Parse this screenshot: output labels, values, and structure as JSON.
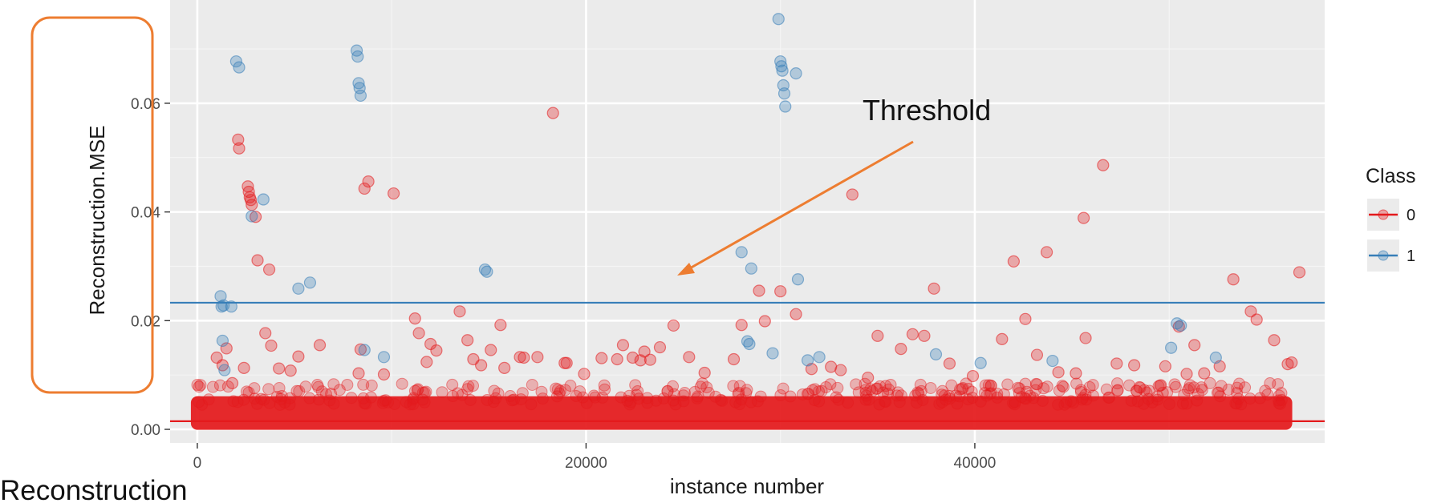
{
  "chart_data": {
    "type": "scatter",
    "title": "",
    "xlabel": "instance number",
    "ylabel": "Reconstruction.MSE",
    "xlim": [
      -1400,
      58000
    ],
    "ylim": [
      -0.0025,
      0.079
    ],
    "x_ticks": [
      0,
      20000,
      40000
    ],
    "x_tick_labels": [
      "0",
      "20000",
      "40000"
    ],
    "x_minor_ticks": [
      10000,
      30000,
      50000
    ],
    "y_ticks": [
      0.0,
      0.02,
      0.04,
      0.06
    ],
    "y_tick_labels": [
      "0.00",
      "0.02",
      "0.04",
      "0.06"
    ],
    "y_minor_ticks": [
      0.01,
      0.03,
      0.05,
      0.07
    ],
    "grid": true,
    "background": "#ebebeb",
    "legend": {
      "title": "Class",
      "placement": "right",
      "entries": [
        {
          "label": "0",
          "color": "#e41a1c"
        },
        {
          "label": "1",
          "color": "#377eb8"
        }
      ]
    },
    "hlines": [
      {
        "y": 0.0233,
        "color": "#377eb8"
      },
      {
        "y": 0.0015,
        "color": "#e41a1c"
      }
    ],
    "annotation": {
      "text": "Threshold",
      "color": "#ed7d31"
    },
    "caption": "Reconstruction",
    "dense_band": {
      "class": "0",
      "x_range": [
        0,
        56000
      ],
      "y_range": [
        0.0005,
        0.0055
      ]
    },
    "series": [
      {
        "name": "0",
        "color": "#e41a1c",
        "points": [
          [
            1000,
            0.0132
          ],
          [
            1300,
            0.0118
          ],
          [
            1500,
            0.0149
          ],
          [
            1800,
            0.0085
          ],
          [
            2100,
            0.0533
          ],
          [
            2150,
            0.0517
          ],
          [
            2400,
            0.0113
          ],
          [
            2600,
            0.0447
          ],
          [
            2650,
            0.0437
          ],
          [
            2700,
            0.0427
          ],
          [
            2750,
            0.0422
          ],
          [
            2800,
            0.0413
          ],
          [
            3000,
            0.0391
          ],
          [
            3100,
            0.0311
          ],
          [
            3500,
            0.0177
          ],
          [
            3700,
            0.0294
          ],
          [
            3800,
            0.0154
          ],
          [
            4200,
            0.0112
          ],
          [
            4800,
            0.0108
          ],
          [
            5200,
            0.0134
          ],
          [
            6300,
            0.0155
          ],
          [
            8300,
            0.0103
          ],
          [
            8400,
            0.0147
          ],
          [
            8600,
            0.0443
          ],
          [
            8800,
            0.0456
          ],
          [
            9600,
            0.0101
          ],
          [
            10100,
            0.0434
          ],
          [
            11200,
            0.0204
          ],
          [
            11400,
            0.0177
          ],
          [
            11800,
            0.0124
          ],
          [
            12000,
            0.0157
          ],
          [
            12300,
            0.0145
          ],
          [
            13500,
            0.0217
          ],
          [
            13900,
            0.0164
          ],
          [
            14200,
            0.0129
          ],
          [
            14600,
            0.0118
          ],
          [
            15100,
            0.0146
          ],
          [
            15600,
            0.0192
          ],
          [
            15800,
            0.0113
          ],
          [
            16600,
            0.0133
          ],
          [
            16800,
            0.0132
          ],
          [
            17500,
            0.0133
          ],
          [
            18300,
            0.0582
          ],
          [
            18900,
            0.0122
          ],
          [
            19000,
            0.0122
          ],
          [
            19900,
            0.0102
          ],
          [
            20800,
            0.0131
          ],
          [
            21600,
            0.0129
          ],
          [
            21900,
            0.0155
          ],
          [
            22400,
            0.0132
          ],
          [
            22800,
            0.0127
          ],
          [
            23000,
            0.0143
          ],
          [
            23300,
            0.0128
          ],
          [
            23800,
            0.0151
          ],
          [
            24500,
            0.0191
          ],
          [
            25300,
            0.0133
          ],
          [
            26100,
            0.0104
          ],
          [
            27600,
            0.0129
          ],
          [
            28000,
            0.0192
          ],
          [
            28900,
            0.0255
          ],
          [
            29200,
            0.0199
          ],
          [
            30000,
            0.0254
          ],
          [
            30800,
            0.0212
          ],
          [
            31600,
            0.0111
          ],
          [
            32600,
            0.0115
          ],
          [
            33100,
            0.0109
          ],
          [
            33700,
            0.0432
          ],
          [
            34500,
            0.0095
          ],
          [
            35000,
            0.0172
          ],
          [
            36200,
            0.0148
          ],
          [
            36800,
            0.0175
          ],
          [
            37400,
            0.0172
          ],
          [
            37900,
            0.0259
          ],
          [
            38700,
            0.0121
          ],
          [
            39900,
            0.0098
          ],
          [
            41400,
            0.0166
          ],
          [
            42000,
            0.0309
          ],
          [
            42600,
            0.0203
          ],
          [
            43200,
            0.0137
          ],
          [
            43700,
            0.0326
          ],
          [
            44300,
            0.0105
          ],
          [
            45200,
            0.0103
          ],
          [
            45600,
            0.0389
          ],
          [
            45700,
            0.0168
          ],
          [
            46600,
            0.0486
          ],
          [
            47300,
            0.0121
          ],
          [
            48200,
            0.0118
          ],
          [
            49800,
            0.0116
          ],
          [
            50500,
            0.0189
          ],
          [
            50900,
            0.0102
          ],
          [
            51300,
            0.0155
          ],
          [
            51800,
            0.0103
          ],
          [
            52600,
            0.0116
          ],
          [
            53300,
            0.0276
          ],
          [
            54200,
            0.0217
          ],
          [
            54500,
            0.0202
          ],
          [
            55400,
            0.0164
          ],
          [
            56100,
            0.012
          ],
          [
            56300,
            0.0123
          ],
          [
            56700,
            0.0289
          ]
        ]
      },
      {
        "name": "1",
        "color": "#377eb8",
        "points": [
          [
            1200,
            0.0245
          ],
          [
            1250,
            0.0226
          ],
          [
            1300,
            0.0163
          ],
          [
            1350,
            0.0228
          ],
          [
            1400,
            0.0109
          ],
          [
            1750,
            0.0226
          ],
          [
            2000,
            0.0677
          ],
          [
            2150,
            0.0666
          ],
          [
            2800,
            0.0392
          ],
          [
            3400,
            0.0423
          ],
          [
            5200,
            0.0259
          ],
          [
            5800,
            0.027
          ],
          [
            8200,
            0.0697
          ],
          [
            8250,
            0.0686
          ],
          [
            8300,
            0.0637
          ],
          [
            8350,
            0.0628
          ],
          [
            8400,
            0.0614
          ],
          [
            8600,
            0.0146
          ],
          [
            9600,
            0.0133
          ],
          [
            14800,
            0.0294
          ],
          [
            14900,
            0.029
          ],
          [
            28000,
            0.0326
          ],
          [
            28300,
            0.0162
          ],
          [
            28400,
            0.0157
          ],
          [
            28500,
            0.0296
          ],
          [
            29600,
            0.014
          ],
          [
            29900,
            0.0755
          ],
          [
            30000,
            0.0677
          ],
          [
            30050,
            0.0668
          ],
          [
            30100,
            0.066
          ],
          [
            30150,
            0.0633
          ],
          [
            30200,
            0.0618
          ],
          [
            30250,
            0.0594
          ],
          [
            30800,
            0.0655
          ],
          [
            30900,
            0.0276
          ],
          [
            31400,
            0.0127
          ],
          [
            32000,
            0.0133
          ],
          [
            38000,
            0.0138
          ],
          [
            40300,
            0.0122
          ],
          [
            44000,
            0.0126
          ],
          [
            50100,
            0.015
          ],
          [
            50400,
            0.0195
          ],
          [
            50600,
            0.0191
          ],
          [
            52400,
            0.0132
          ]
        ]
      }
    ]
  }
}
